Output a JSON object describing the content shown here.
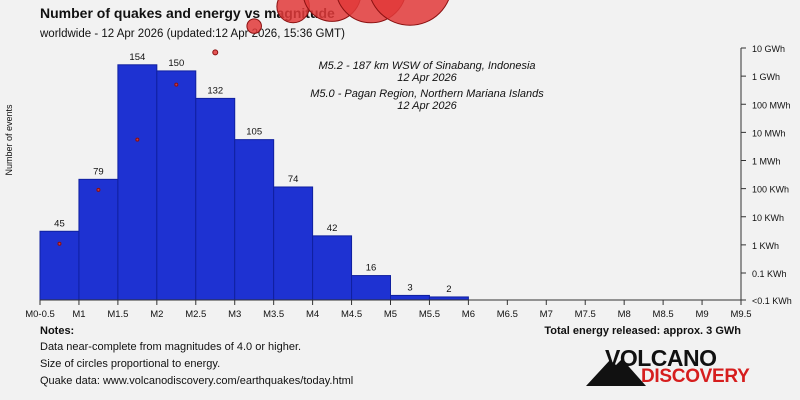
{
  "title": "Number of quakes and energy vs magnitude",
  "subtitle": "worldwide - 12 Apr 2026 (updated:12 Apr 2026, 15:36 GMT)",
  "notes": {
    "heading": "Notes:",
    "lines": [
      "Data near-complete from magnitudes of 4.0 or higher.",
      "Size of circles proportional to energy.",
      "Quake data: www.volcanodiscovery.com/earthquakes/today.html"
    ]
  },
  "total_energy": "Total energy released: approx. 3 GWh",
  "logo": {
    "top": "VOLCANO",
    "bottom": "DISCOVERY"
  },
  "colors": {
    "bar": "#1e32d2",
    "bar_edge": "#1020a0",
    "circle": "#e23a3a",
    "circle_edge": "#8a1010",
    "background": "#f2f2f2"
  },
  "chart_data": {
    "type": "bar",
    "ylabel": "Number of events",
    "x_tick_labels": [
      "M0-0.5",
      "M1",
      "M1.5",
      "M2",
      "M2.5",
      "M3",
      "M3.5",
      "M4",
      "M4.5",
      "M5",
      "M5.5",
      "M6",
      "M6.5",
      "M7",
      "M7.5",
      "M8",
      "M8.5",
      "M9",
      "M9.5"
    ],
    "xlim": [
      0.5,
      9.5
    ],
    "ylim": [
      0,
      165
    ],
    "bins": [
      {
        "from": 0.5,
        "to": 1.0,
        "count": 45
      },
      {
        "from": 1.0,
        "to": 1.5,
        "count": 79
      },
      {
        "from": 1.5,
        "to": 2.0,
        "count": 154
      },
      {
        "from": 2.0,
        "to": 2.5,
        "count": 150
      },
      {
        "from": 2.5,
        "to": 3.0,
        "count": 132
      },
      {
        "from": 3.0,
        "to": 3.5,
        "count": 105
      },
      {
        "from": 3.5,
        "to": 4.0,
        "count": 74
      },
      {
        "from": 4.0,
        "to": 4.5,
        "count": 42
      },
      {
        "from": 4.5,
        "to": 5.0,
        "count": 16
      },
      {
        "from": 5.0,
        "to": 5.5,
        "count": 3
      },
      {
        "from": 5.5,
        "to": 6.0,
        "count": 2
      }
    ],
    "energy_axis": {
      "scale": "log",
      "tick_labels": [
        "0.1 KWh",
        "1 KWh",
        "10 KWh",
        "100 KWh",
        "1 MWh",
        "10 MWh",
        "100 MWh",
        "1 GWh",
        "10 GWh"
      ],
      "tick_values_kwh": [
        0.1,
        1,
        10,
        100,
        1000,
        10000,
        100000,
        1000000,
        10000000
      ],
      "bottom_label": "<0.1 KWh"
    },
    "energy_series": [
      {
        "magnitude": 0.75,
        "energy_kwh": 1.1
      },
      {
        "magnitude": 1.25,
        "energy_kwh": 90
      },
      {
        "magnitude": 1.75,
        "energy_kwh": 5500
      },
      {
        "magnitude": 2.25,
        "energy_kwh": 500000
      },
      {
        "magnitude": 2.75,
        "energy_kwh": 7000000
      },
      {
        "magnitude": 3.25,
        "energy_kwh": 60000000
      },
      {
        "magnitude": 3.75,
        "energy_kwh": 300000000
      },
      {
        "magnitude": 4.25,
        "energy_kwh": 950000000
      },
      {
        "magnitude": 4.75,
        "energy_kwh": 1400000000
      },
      {
        "magnitude": 5.25,
        "energy_kwh": 2000000000
      }
    ],
    "annotations": [
      {
        "text": "M5.2 - 187 km WSW of Sinabang, Indonesia",
        "date": "12 Apr 2026"
      },
      {
        "text": "M5.0 - Pagan Region, Northern Mariana Islands",
        "date": "12 Apr 2026"
      }
    ]
  }
}
